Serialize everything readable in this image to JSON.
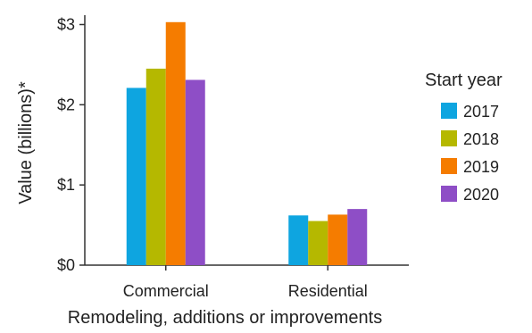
{
  "chart_data": {
    "type": "bar",
    "xlabel": "Remodeling, additions or improvements",
    "ylabel": "Value (billions)*",
    "categories": [
      "Commercial",
      "Residential"
    ],
    "ylim": [
      0,
      3.05
    ],
    "yticks": [
      {
        "value": 0,
        "label": "$0"
      },
      {
        "value": 1,
        "label": "$1"
      },
      {
        "value": 2,
        "label": "$2"
      },
      {
        "value": 3,
        "label": "$3"
      }
    ],
    "legend": {
      "title": "Start year",
      "position": "right"
    },
    "grid": false,
    "series": [
      {
        "name": "2017",
        "color": "#0ea5e0",
        "values": [
          2.21,
          0.62
        ]
      },
      {
        "name": "2018",
        "color": "#b5b800",
        "values": [
          2.45,
          0.55
        ]
      },
      {
        "name": "2019",
        "color": "#f57c00",
        "values": [
          3.03,
          0.63
        ]
      },
      {
        "name": "2020",
        "color": "#8e4ec6",
        "values": [
          2.31,
          0.7
        ]
      }
    ]
  }
}
